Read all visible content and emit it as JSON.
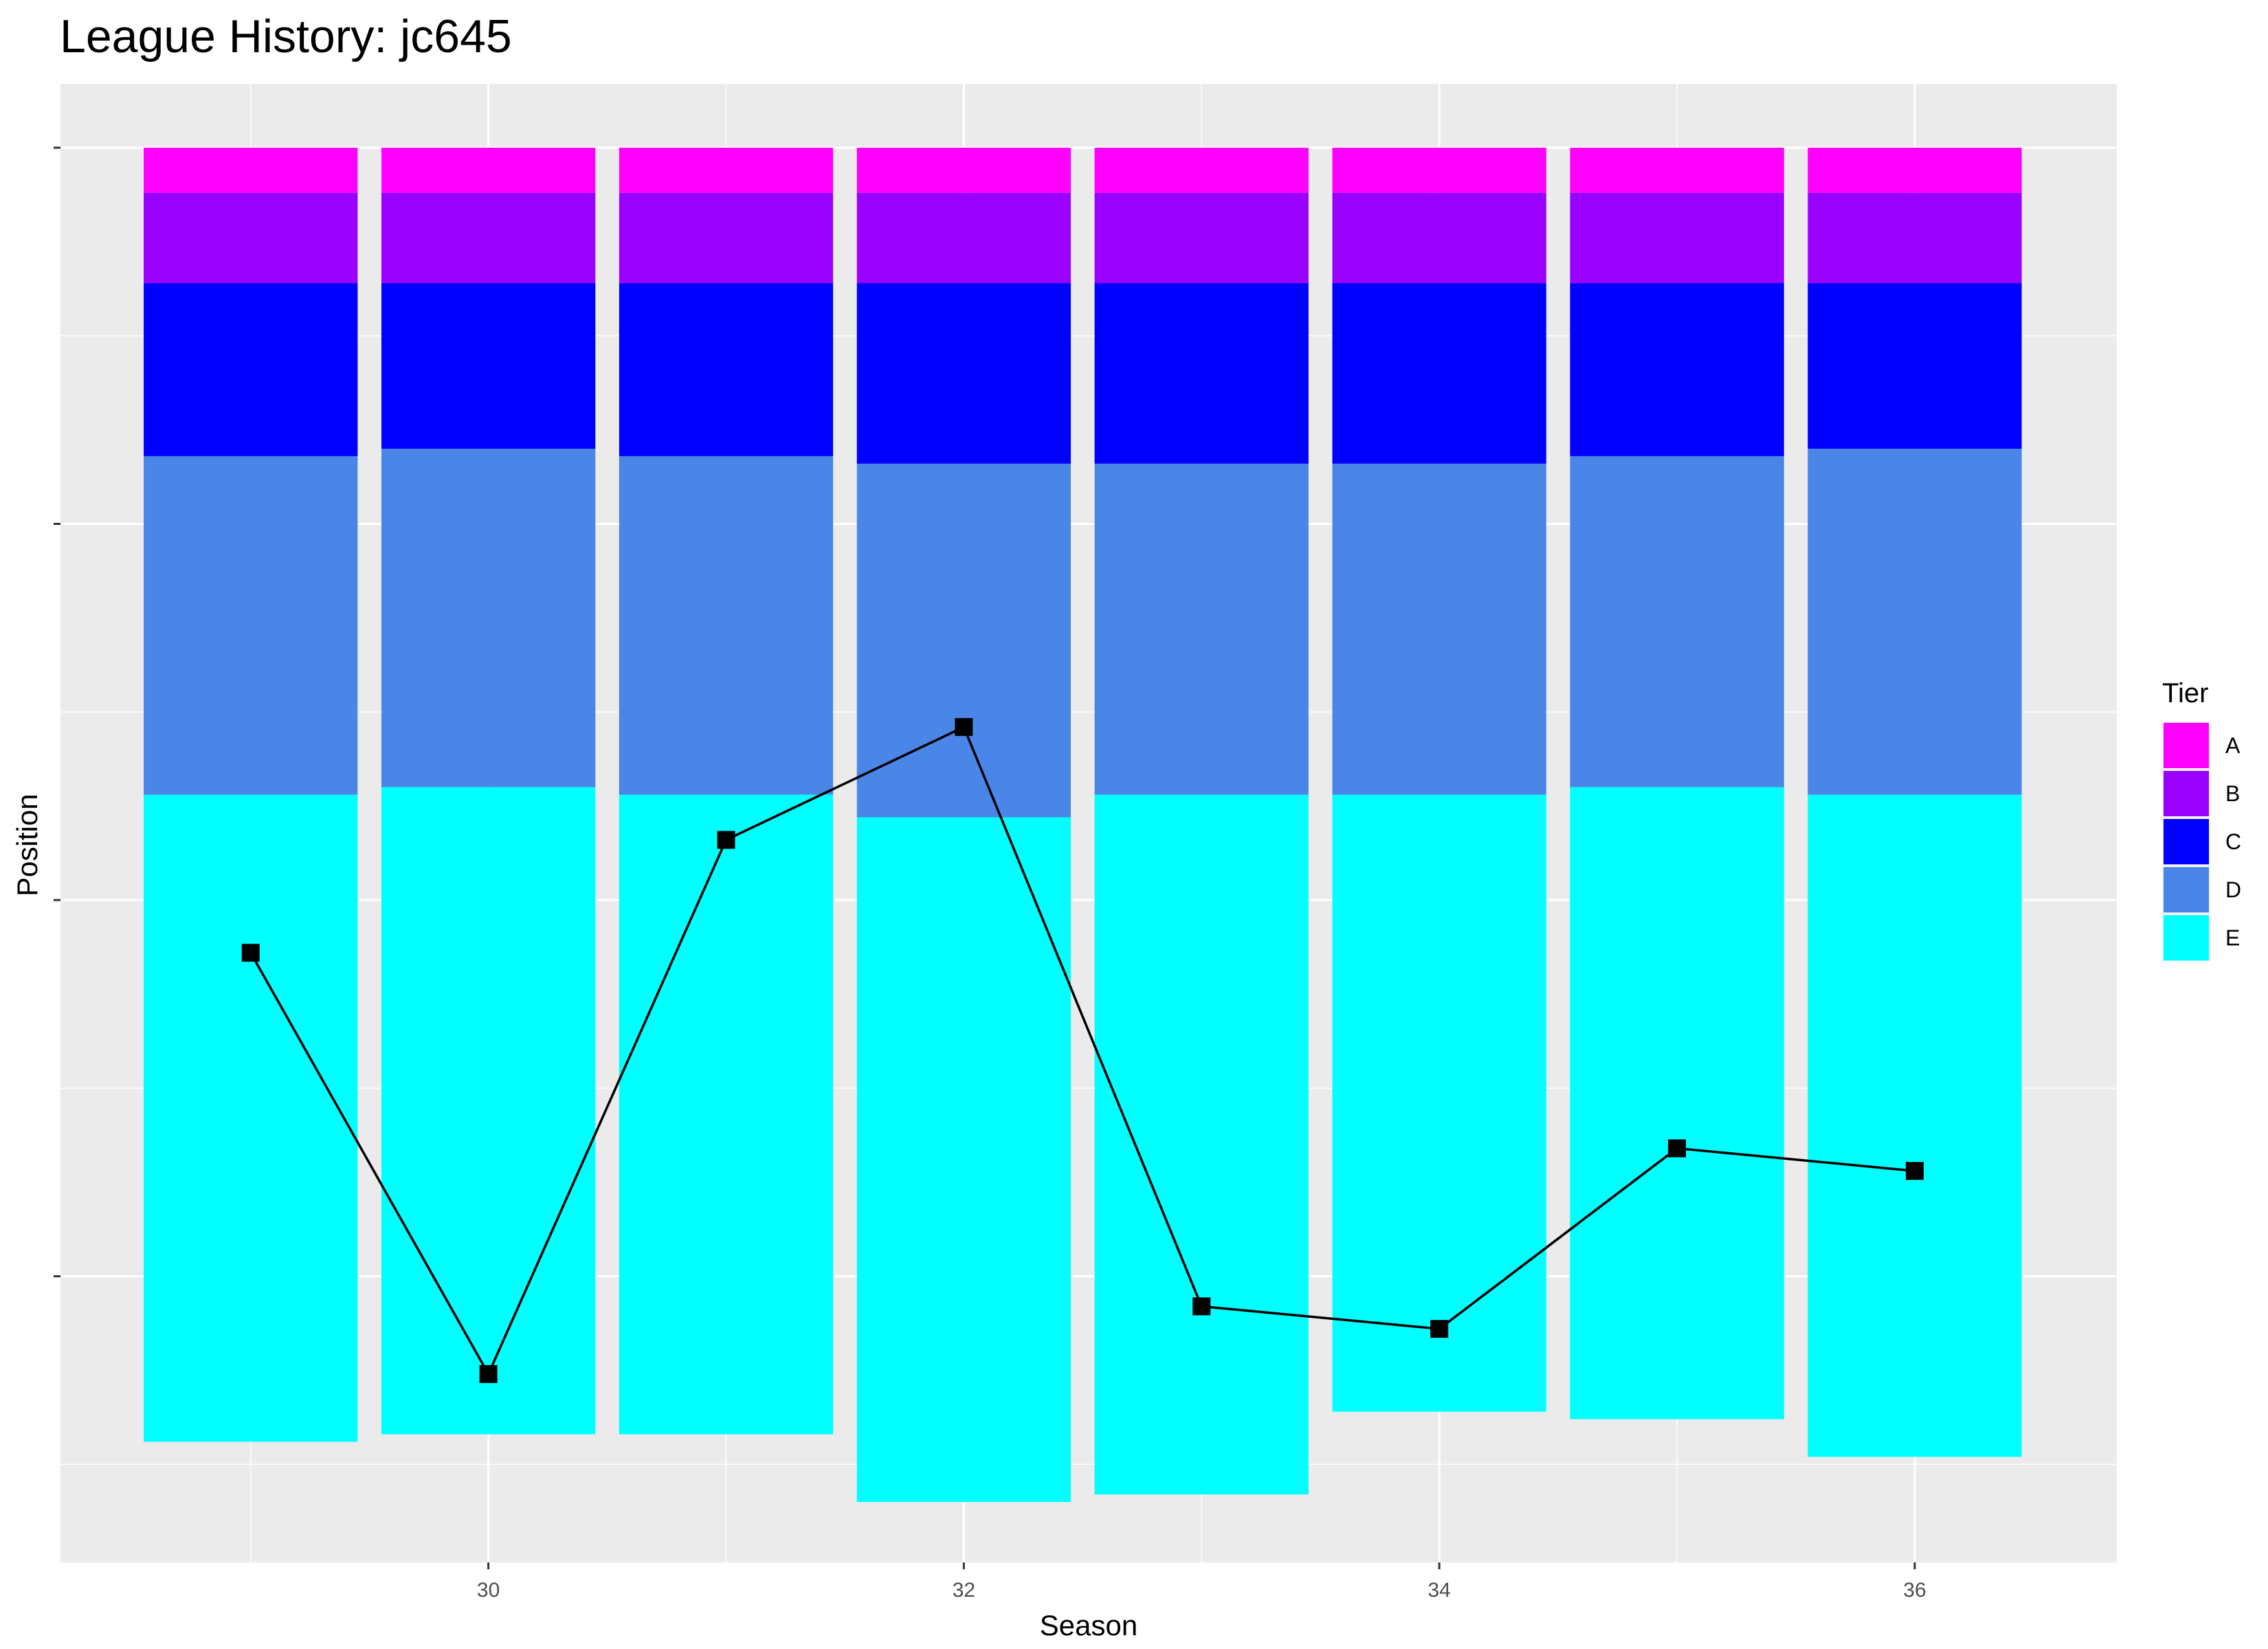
{
  "chart_data": {
    "type": "bar",
    "title": "League History: jc645",
    "xlabel": "Season",
    "ylabel": "Position",
    "x_ticks": [
      30,
      32,
      34,
      36
    ],
    "xlim": [
      28.2,
      36.85
    ],
    "ylim_position": [
      1,
      100
    ],
    "y_direction": "reversed",
    "grid": true,
    "legend_title": "Tier",
    "legend_position": "right",
    "tiers": [
      "A",
      "B",
      "C",
      "D",
      "E"
    ],
    "tier_colors": {
      "A": "#FF00FF",
      "B": "#9900FF",
      "C": "#0000FF",
      "D": "#4A86E8",
      "E": "#00FFFF"
    },
    "seasons": [
      {
        "season": 29,
        "tier_sizes": {
          "A": 6,
          "B": 12,
          "C": 23,
          "D": 45,
          "E": 86
        }
      },
      {
        "season": 30,
        "tier_sizes": {
          "A": 6,
          "B": 12,
          "C": 22,
          "D": 45,
          "E": 86
        }
      },
      {
        "season": 31,
        "tier_sizes": {
          "A": 6,
          "B": 12,
          "C": 23,
          "D": 45,
          "E": 85
        }
      },
      {
        "season": 32,
        "tier_sizes": {
          "A": 6,
          "B": 12,
          "C": 24,
          "D": 47,
          "E": 91
        }
      },
      {
        "season": 33,
        "tier_sizes": {
          "A": 6,
          "B": 12,
          "C": 24,
          "D": 44,
          "E": 93
        }
      },
      {
        "season": 34,
        "tier_sizes": {
          "A": 6,
          "B": 12,
          "C": 24,
          "D": 44,
          "E": 82
        }
      },
      {
        "season": 35,
        "tier_sizes": {
          "A": 6,
          "B": 12,
          "C": 23,
          "D": 44,
          "E": 84
        }
      },
      {
        "season": 36,
        "tier_sizes": {
          "A": 6,
          "B": 12,
          "C": 22,
          "D": 46,
          "E": 88
        }
      }
    ],
    "position_line": {
      "color": "#000000",
      "points": [
        {
          "season": 29,
          "position": 108
        },
        {
          "season": 30,
          "position": 164
        },
        {
          "season": 31,
          "position": 93
        },
        {
          "season": 32,
          "position": 78
        },
        {
          "season": 33,
          "position": 155
        },
        {
          "season": 34,
          "position": 158
        },
        {
          "season": 35,
          "position": 134
        },
        {
          "season": 36,
          "position": 137
        }
      ]
    }
  }
}
